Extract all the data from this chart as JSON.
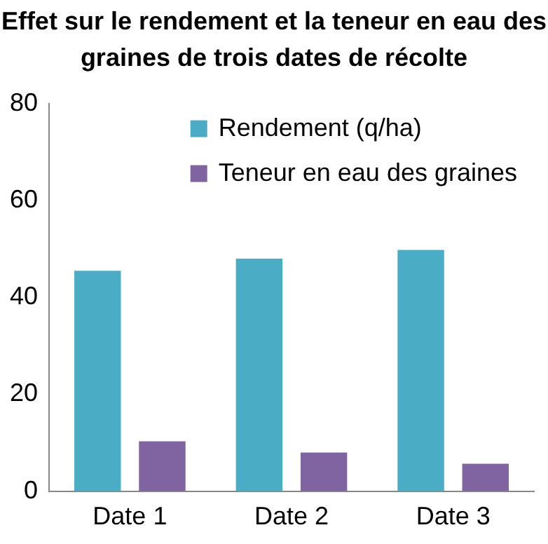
{
  "chart_data": {
    "type": "bar",
    "title": "Effet sur le rendement et la teneur en eau des graines de trois dates de récolte",
    "categories": [
      "Date 1",
      "Date 2",
      "Date 3"
    ],
    "series": [
      {
        "name": "Rendement (q/ha)",
        "color": "#4bacc6",
        "values": [
          45.5,
          48,
          49.8
        ]
      },
      {
        "name": "Teneur en eau des graines",
        "color": "#8064a2",
        "values": [
          10.3,
          8,
          5.7
        ]
      }
    ],
    "ylim": [
      0,
      80
    ],
    "yticks": [
      0,
      20,
      40,
      60,
      80
    ],
    "grid": false,
    "legend": "top right"
  }
}
